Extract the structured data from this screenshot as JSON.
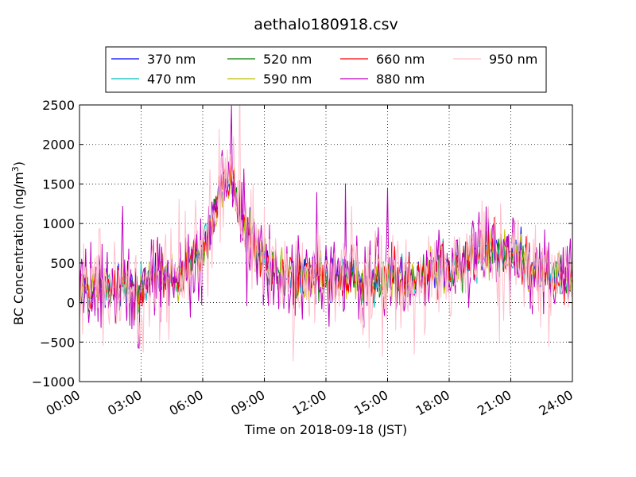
{
  "chart_data": {
    "type": "line",
    "title": "aethalo180918.csv",
    "xlabel": "Time on 2018-09-18 (JST)",
    "ylabel": "BC Concentration (ng/m³)",
    "ylabel_main": "BC Concentration (ng/m",
    "ylabel_sup": "3",
    "ylabel_end": ")",
    "xlim_hours": [
      0,
      24
    ],
    "ylim": [
      -1000,
      2500
    ],
    "x_ticks": [
      "00:00",
      "03:00",
      "06:00",
      "09:00",
      "12:00",
      "15:00",
      "18:00",
      "21:00",
      "24:00"
    ],
    "y_ticks": [
      "−1000",
      "−500",
      "0",
      "500",
      "1000",
      "1500",
      "2000",
      "2500"
    ],
    "grid": true,
    "legend_position": "top",
    "sample_interval_minutes": 3,
    "baseline_profile": {
      "hours": [
        0,
        1,
        2,
        3,
        4,
        5,
        6,
        7,
        7.5,
        8,
        9,
        10,
        12,
        15,
        18,
        19,
        20,
        21,
        22,
        23,
        24
      ],
      "values": [
        120,
        160,
        200,
        220,
        350,
        380,
        650,
        1500,
        1500,
        1000,
        450,
        300,
        320,
        280,
        450,
        550,
        650,
        600,
        500,
        350,
        250
      ]
    },
    "series": [
      {
        "name": "370 nm",
        "color": "#0000ff",
        "amplitude": 150
      },
      {
        "name": "470 nm",
        "color": "#00bfbf",
        "amplitude": 150
      },
      {
        "name": "520 nm",
        "color": "#008000",
        "amplitude": 150
      },
      {
        "name": "590 nm",
        "color": "#bfbf00",
        "amplitude": 180
      },
      {
        "name": "660 nm",
        "color": "#ff0000",
        "amplitude": 160
      },
      {
        "name": "880 nm",
        "color": "#bf00bf",
        "amplitude": 320
      },
      {
        "name": "950 nm",
        "color": "#ffc0cb",
        "amplitude": 360
      }
    ]
  }
}
